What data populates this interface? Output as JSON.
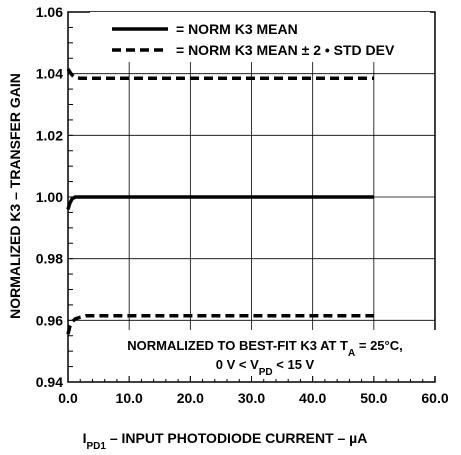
{
  "chart_data": {
    "type": "line",
    "xlabel": {
      "main": "I",
      "sub": "PD1",
      "rest": " – INPUT PHOTODIODE CURRENT – µA"
    },
    "ylabel": "NORMALIZED K3 – TRANSFER GAIN",
    "xlim": [
      0,
      60
    ],
    "ylim": [
      0.94,
      1.06
    ],
    "x_ticks": [
      0,
      10,
      20,
      30,
      40,
      50,
      60
    ],
    "x_tick_labels": [
      "0.0",
      "10.0",
      "20.0",
      "30.0",
      "40.0",
      "50.0",
      "60.0"
    ],
    "y_ticks": [
      0.94,
      0.96,
      0.98,
      1.0,
      1.02,
      1.04,
      1.06
    ],
    "y_tick_labels": [
      "0.94",
      "0.96",
      "0.98",
      "1.00",
      "1.02",
      "1.04",
      "1.06"
    ],
    "grid": true,
    "legend_position": "top",
    "series": [
      {
        "name": "= NORM K3 MEAN",
        "style": "solid",
        "x": [
          0,
          0.3,
          0.7,
          1.2,
          2,
          3,
          5,
          10,
          20,
          30,
          40,
          50
        ],
        "y": [
          0.996,
          0.998,
          0.9995,
          1.0,
          1.0,
          1.0,
          1.0,
          1.0,
          1.0,
          1.0,
          1.0,
          1.0
        ]
      },
      {
        "name": "= NORM K3 MEAN ± 2 • STD DEV",
        "style": "dashed",
        "x": [
          0,
          0.3,
          0.7,
          1.2,
          2,
          3,
          5,
          10,
          20,
          30,
          40,
          50
        ],
        "y": [
          1.0415,
          1.0405,
          1.0395,
          1.0388,
          1.0385,
          1.0385,
          1.0385,
          1.0385,
          1.0385,
          1.0385,
          1.0385,
          1.0385
        ]
      },
      {
        "name": "",
        "style": "dashed",
        "x": [
          0,
          0.3,
          0.7,
          1.2,
          2,
          3,
          5,
          10,
          20,
          30,
          40,
          50
        ],
        "y": [
          0.9555,
          0.958,
          0.9595,
          0.9605,
          0.961,
          0.9615,
          0.9615,
          0.9615,
          0.9615,
          0.9615,
          0.9615,
          0.9615
        ]
      }
    ],
    "annotation": {
      "line1": {
        "pre": "NORMALIZED TO BEST-FIT K3 AT T",
        "sub": "A",
        "post": " = 25°C,"
      },
      "line2": {
        "pre": "0 V < V",
        "sub": "PD",
        "post": " < 15 V"
      }
    }
  }
}
